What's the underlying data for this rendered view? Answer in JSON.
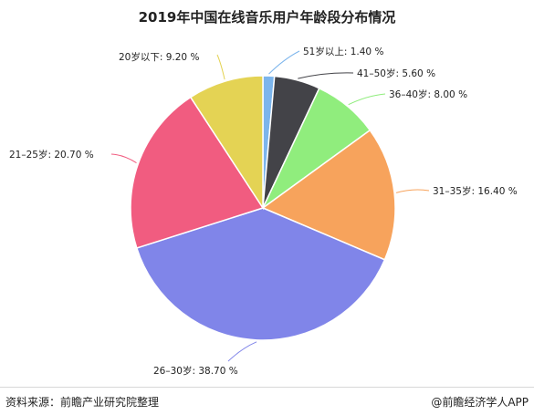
{
  "chart_data": {
    "type": "pie",
    "title": "2019年中国在线音乐用户年龄段分布情况",
    "slices": [
      {
        "label": "51岁以上",
        "value": 1.4,
        "display": "1.40 %",
        "color": "#7cb5ec"
      },
      {
        "label": "41–50岁",
        "value": 5.6,
        "display": "5.60 %",
        "color": "#434348"
      },
      {
        "label": "36–40岁",
        "value": 8.0,
        "display": "8.00 %",
        "color": "#90ed7d"
      },
      {
        "label": "31–35岁",
        "value": 16.4,
        "display": "16.40 %",
        "color": "#f7a35c"
      },
      {
        "label": "26–30岁",
        "value": 38.7,
        "display": "38.70 %",
        "color": "#8085e9"
      },
      {
        "label": "21–25岁",
        "value": 20.7,
        "display": "20.70 %",
        "color": "#f15c80"
      },
      {
        "label": "20岁以下",
        "value": 9.2,
        "display": "9.20 %",
        "color": "#e4d354"
      }
    ]
  },
  "footer": {
    "source": "资料来源：前瞻产业研究院整理",
    "credit": "@前瞻经济学人APP"
  }
}
